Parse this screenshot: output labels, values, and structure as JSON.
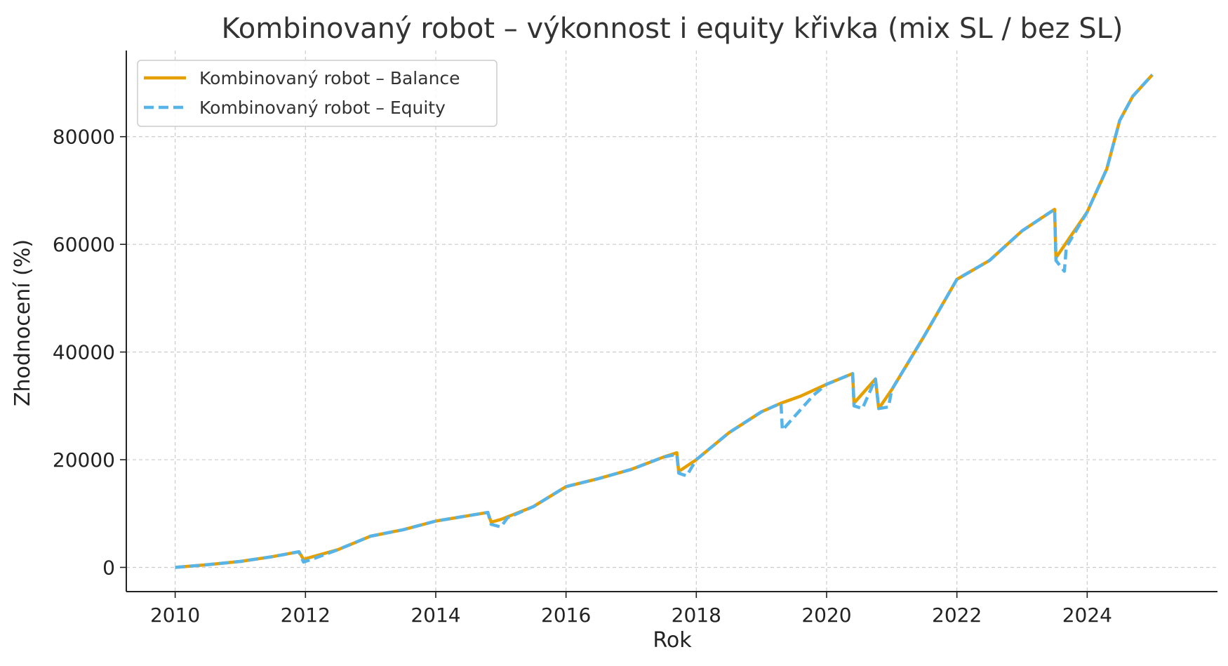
{
  "chart_data": {
    "type": "line",
    "title": "Kombinovaný robot – výkonnost i equity křivka (mix SL / bez SL)",
    "xlabel": "Rok",
    "ylabel": "Zhodnocení (%)",
    "xlim": [
      2009.25,
      2026.0
    ],
    "ylim": [
      -4500,
      96000
    ],
    "x_ticks": [
      2010,
      2012,
      2014,
      2016,
      2018,
      2020,
      2022,
      2024
    ],
    "y_ticks": [
      0,
      20000,
      40000,
      60000,
      80000
    ],
    "grid": true,
    "legend_position": "top-left",
    "series": [
      {
        "name": "Kombinovaný robot – Balance",
        "color": "#E69F00",
        "style": "solid",
        "points": [
          [
            2010.0,
            0
          ],
          [
            2010.5,
            500
          ],
          [
            2011.0,
            1100
          ],
          [
            2011.5,
            2000
          ],
          [
            2011.9,
            2900
          ],
          [
            2011.97,
            1500
          ],
          [
            2012.0,
            1600
          ],
          [
            2012.5,
            3300
          ],
          [
            2013.0,
            5800
          ],
          [
            2013.5,
            7000
          ],
          [
            2014.0,
            8600
          ],
          [
            2014.5,
            9600
          ],
          [
            2014.8,
            10200
          ],
          [
            2014.85,
            8400
          ],
          [
            2015.0,
            8900
          ],
          [
            2015.5,
            11300
          ],
          [
            2016.0,
            15000
          ],
          [
            2016.5,
            16500
          ],
          [
            2017.0,
            18200
          ],
          [
            2017.5,
            20500
          ],
          [
            2017.7,
            21300
          ],
          [
            2017.73,
            17800
          ],
          [
            2018.0,
            20000
          ],
          [
            2018.5,
            25000
          ],
          [
            2019.0,
            28900
          ],
          [
            2019.3,
            30500
          ],
          [
            2019.6,
            31800
          ],
          [
            2020.0,
            34000
          ],
          [
            2020.4,
            36000
          ],
          [
            2020.42,
            30500
          ],
          [
            2020.75,
            35000
          ],
          [
            2020.8,
            29500
          ],
          [
            2021.0,
            33000
          ],
          [
            2021.5,
            43000
          ],
          [
            2022.0,
            53500
          ],
          [
            2022.5,
            57000
          ],
          [
            2023.0,
            62500
          ],
          [
            2023.5,
            66500
          ],
          [
            2023.52,
            57500
          ],
          [
            2024.0,
            66000
          ],
          [
            2024.3,
            74000
          ],
          [
            2024.5,
            83000
          ],
          [
            2024.7,
            87500
          ],
          [
            2025.0,
            91500
          ]
        ]
      },
      {
        "name": "Kombinovaný robot – Equity",
        "color": "#56B4E9",
        "style": "dashed",
        "points": [
          [
            2010.0,
            0
          ],
          [
            2010.5,
            500
          ],
          [
            2011.0,
            1100
          ],
          [
            2011.5,
            2000
          ],
          [
            2011.9,
            2900
          ],
          [
            2011.97,
            1000
          ],
          [
            2012.1,
            1500
          ],
          [
            2012.5,
            3300
          ],
          [
            2013.0,
            5800
          ],
          [
            2013.5,
            7000
          ],
          [
            2014.0,
            8600
          ],
          [
            2014.5,
            9600
          ],
          [
            2014.8,
            10200
          ],
          [
            2014.85,
            8000
          ],
          [
            2015.0,
            7500
          ],
          [
            2015.1,
            9200
          ],
          [
            2015.5,
            11300
          ],
          [
            2016.0,
            15000
          ],
          [
            2016.5,
            16500
          ],
          [
            2017.0,
            18200
          ],
          [
            2017.5,
            20500
          ],
          [
            2017.7,
            21000
          ],
          [
            2017.73,
            17500
          ],
          [
            2017.85,
            17000
          ],
          [
            2018.0,
            20000
          ],
          [
            2018.5,
            25000
          ],
          [
            2019.0,
            28900
          ],
          [
            2019.3,
            30500
          ],
          [
            2019.32,
            25500
          ],
          [
            2019.8,
            32000
          ],
          [
            2020.0,
            34000
          ],
          [
            2020.4,
            36000
          ],
          [
            2020.42,
            30000
          ],
          [
            2020.55,
            29500
          ],
          [
            2020.75,
            35000
          ],
          [
            2020.8,
            29500
          ],
          [
            2020.95,
            29800
          ],
          [
            2021.0,
            33000
          ],
          [
            2021.5,
            43000
          ],
          [
            2022.0,
            53500
          ],
          [
            2022.5,
            57000
          ],
          [
            2023.0,
            62500
          ],
          [
            2023.5,
            66500
          ],
          [
            2023.52,
            57000
          ],
          [
            2023.65,
            55000
          ],
          [
            2023.68,
            59500
          ],
          [
            2024.0,
            66000
          ],
          [
            2024.3,
            74000
          ],
          [
            2024.5,
            83000
          ],
          [
            2024.7,
            87500
          ],
          [
            2025.0,
            91500
          ]
        ]
      }
    ]
  }
}
